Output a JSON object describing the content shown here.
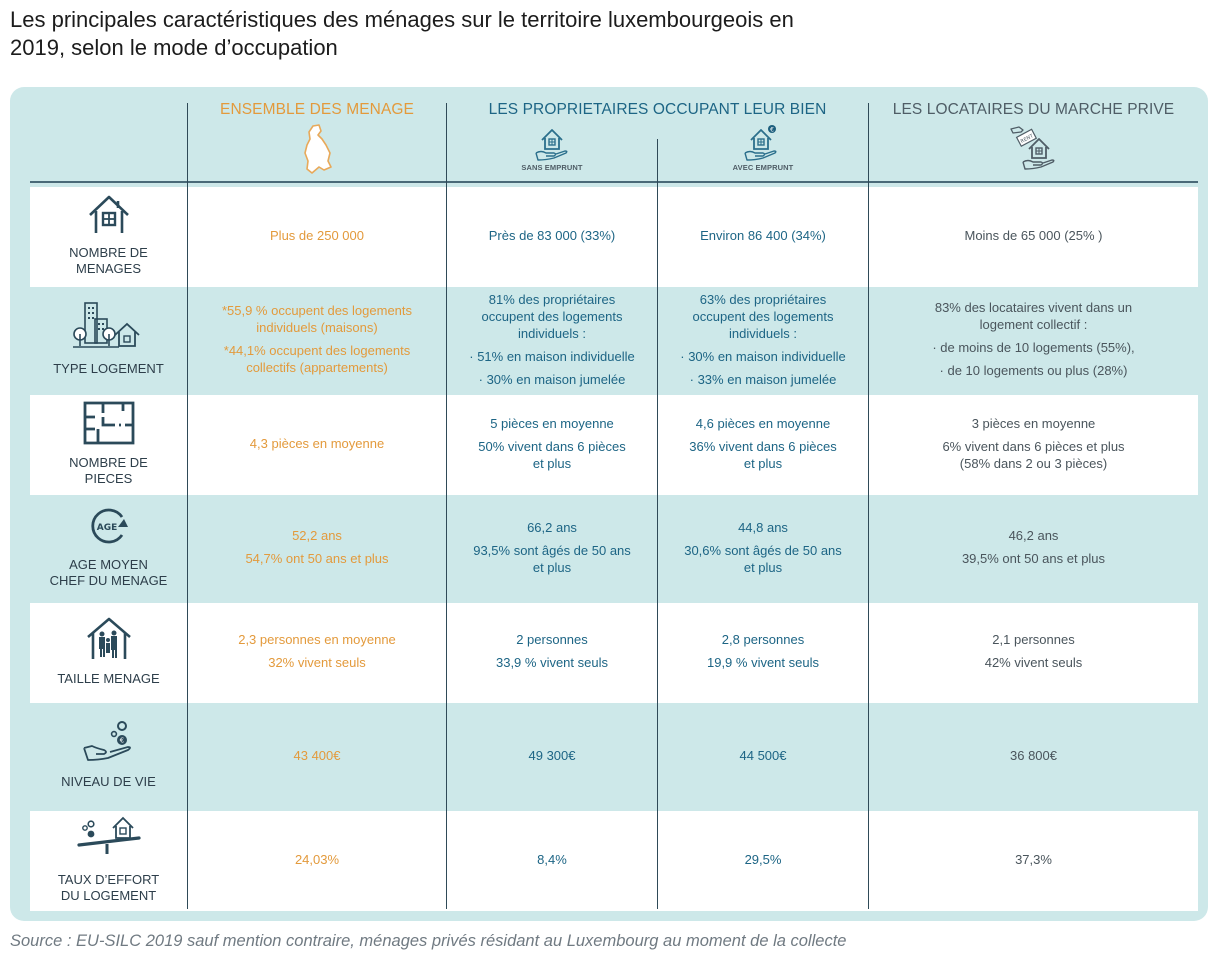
{
  "title": "Les principales caractéristiques des ménages sur le territoire luxembourgeois en 2019, selon le mode d’occupation",
  "title_lines": [
    "Les principales caractéristiques des ménages sur le territoire luxembourgeois en",
    "2019, selon le mode d’occupation"
  ],
  "colors": {
    "panel_background": "#cde8e9",
    "ensemble_accent": "#e39a3c",
    "proprietaires_accent": "#1d6585",
    "locataires_accent": "#4f5d66",
    "row_label": "#2d3e4a",
    "lines": "#2f4a58"
  },
  "columns": {
    "ensemble": {
      "label": "ENSEMBLE DES MENAGE",
      "icon": "luxembourg-map-icon"
    },
    "proprietaires": {
      "label": "LES PROPRIETAIRES OCCUPANT LEUR BIEN",
      "sub": [
        {
          "label": "SANS EMPRUNT",
          "icon": "house-in-hand-icon"
        },
        {
          "label": "AVEC EMPRUNT",
          "icon": "house-in-hand-euro-icon"
        }
      ]
    },
    "locataires": {
      "label": "LES LOCATAIRES DU MARCHE PRIVE",
      "icon": "rent-house-hand-icon",
      "icon_text": "RENT"
    }
  },
  "rows": [
    {
      "label": [
        "NOMBRE DE",
        "MENAGES"
      ],
      "icon": "house-icon",
      "ensemble": [
        "Plus de 250 000"
      ],
      "sans_emprunt": [
        "Près de 83 000 (33%)"
      ],
      "avec_emprunt": [
        "Environ 86 400 (34%)"
      ],
      "locataires": [
        "Moins de 65 000 (25% )"
      ]
    },
    {
      "label": [
        "TYPE LOGEMENT"
      ],
      "icon": "buildings-trees-house-icon",
      "ensemble": [
        "*55,9 % occupent des logements",
        "individuels (maisons)",
        "*44,1% occupent des logements",
        "collectifs (appartements)"
      ],
      "sans_emprunt": [
        "81% des propriétaires",
        "occupent des logements",
        "individuels :",
        "· 51% en maison individuelle",
        "· 30% en maison jumelée"
      ],
      "avec_emprunt": [
        "63% des propriétaires",
        "occupent des logements",
        "individuels :",
        "· 30% en maison individuelle",
        "· 33% en maison jumelée"
      ],
      "locataires": [
        "83% des locataires vivent dans un",
        "logement collectif :",
        "· de moins de 10 logements (55%),",
        "· de 10 logements ou plus (28%)"
      ]
    },
    {
      "label": [
        "NOMBRE DE",
        "PIECES"
      ],
      "icon": "floor-plan-icon",
      "ensemble": [
        "4,3 pièces en moyenne"
      ],
      "sans_emprunt": [
        "5 pièces en moyenne",
        "50% vivent dans 6 pièces",
        "et plus"
      ],
      "avec_emprunt": [
        "4,6 pièces en moyenne",
        "36% vivent dans 6 pièces",
        "et plus"
      ],
      "locataires": [
        "3 pièces en moyenne",
        "6% vivent dans 6 pièces et plus",
        "(58% dans 2 ou 3 pièces)"
      ]
    },
    {
      "label": [
        "AGE MOYEN",
        "CHEF DU MENAGE"
      ],
      "icon": "age-cycle-icon",
      "icon_text": "AGE",
      "ensemble": [
        "52,2 ans",
        "54,7% ont 50 ans et plus"
      ],
      "sans_emprunt": [
        "66,2 ans",
        "93,5% sont âgés de 50 ans",
        "et plus"
      ],
      "avec_emprunt": [
        "44,8 ans",
        "30,6% sont âgés de 50 ans",
        "et plus"
      ],
      "locataires": [
        "46,2 ans",
        "39,5% ont 50 ans et plus"
      ]
    },
    {
      "label": [
        "TAILLE MENAGE"
      ],
      "icon": "family-house-icon",
      "ensemble": [
        "2,3 personnes en moyenne",
        "32% vivent seuls"
      ],
      "sans_emprunt": [
        "2 personnes",
        "33,9 % vivent seuls"
      ],
      "avec_emprunt": [
        "2,8 personnes",
        "19,9 % vivent seuls"
      ],
      "locataires": [
        "2,1 personnes",
        "42% vivent seuls"
      ]
    },
    {
      "label": [
        "NIVEAU DE VIE"
      ],
      "icon": "hand-coins-icon",
      "ensemble": [
        "43 400€"
      ],
      "sans_emprunt": [
        "49 300€"
      ],
      "avec_emprunt": [
        "44 500€"
      ],
      "locataires": [
        "36 800€"
      ]
    },
    {
      "label": [
        "TAUX D’EFFORT",
        "DU LOGEMENT"
      ],
      "icon": "balance-coins-house-icon",
      "ensemble": [
        "24,03%"
      ],
      "sans_emprunt": [
        "8,4%"
      ],
      "avec_emprunt": [
        "29,5%"
      ],
      "locataires": [
        "37,3%"
      ]
    }
  ],
  "source": "Source : EU-SILC 2019 sauf mention contraire, ménages privés résidant au Luxembourg au moment de la collecte"
}
